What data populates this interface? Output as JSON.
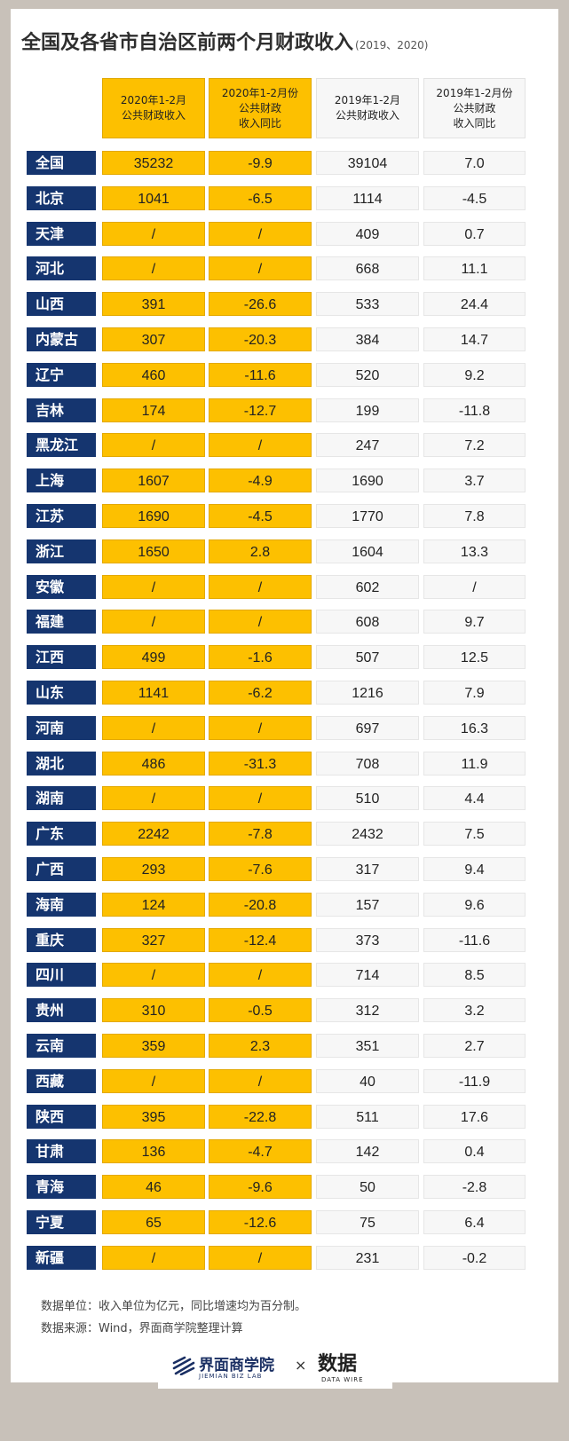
{
  "title": "全国及各省市自治区前两个月财政收入",
  "subtitle": "(2019、2020)",
  "chart_data": {
    "type": "table",
    "columns": [
      "2020年1-2月\n公共财政收入",
      "2020年1-2月份\n公共财政\n收入同比",
      "2019年1-2月\n公共财政收入",
      "2019年1-2月份\n公共财政\n收入同比"
    ],
    "rows": [
      {
        "region": "全国",
        "values": [
          "35232",
          "-9.9",
          "39104",
          "7.0"
        ]
      },
      {
        "region": "北京",
        "values": [
          "1041",
          "-6.5",
          "1114",
          "-4.5"
        ]
      },
      {
        "region": "天津",
        "values": [
          "/",
          "/",
          "409",
          "0.7"
        ]
      },
      {
        "region": "河北",
        "values": [
          "/",
          "/",
          "668",
          "11.1"
        ]
      },
      {
        "region": "山西",
        "values": [
          "391",
          "-26.6",
          "533",
          "24.4"
        ]
      },
      {
        "region": "内蒙古",
        "values": [
          "307",
          "-20.3",
          "384",
          "14.7"
        ]
      },
      {
        "region": "辽宁",
        "values": [
          "460",
          "-11.6",
          "520",
          "9.2"
        ]
      },
      {
        "region": "吉林",
        "values": [
          "174",
          "-12.7",
          "199",
          "-11.8"
        ]
      },
      {
        "region": "黑龙江",
        "values": [
          "/",
          "/",
          "247",
          "7.2"
        ]
      },
      {
        "region": "上海",
        "values": [
          "1607",
          "-4.9",
          "1690",
          "3.7"
        ]
      },
      {
        "region": "江苏",
        "values": [
          "1690",
          "-4.5",
          "1770",
          "7.8"
        ]
      },
      {
        "region": "浙江",
        "values": [
          "1650",
          "2.8",
          "1604",
          "13.3"
        ]
      },
      {
        "region": "安徽",
        "values": [
          "/",
          "/",
          "602",
          "/"
        ]
      },
      {
        "region": "福建",
        "values": [
          "/",
          "/",
          "608",
          "9.7"
        ]
      },
      {
        "region": "江西",
        "values": [
          "499",
          "-1.6",
          "507",
          "12.5"
        ]
      },
      {
        "region": "山东",
        "values": [
          "1141",
          "-6.2",
          "1216",
          "7.9"
        ]
      },
      {
        "region": "河南",
        "values": [
          "/",
          "/",
          "697",
          "16.3"
        ]
      },
      {
        "region": "湖北",
        "values": [
          "486",
          "-31.3",
          "708",
          "11.9"
        ]
      },
      {
        "region": "湖南",
        "values": [
          "/",
          "/",
          "510",
          "4.4"
        ]
      },
      {
        "region": "广东",
        "values": [
          "2242",
          "-7.8",
          "2432",
          "7.5"
        ]
      },
      {
        "region": "广西",
        "values": [
          "293",
          "-7.6",
          "317",
          "9.4"
        ]
      },
      {
        "region": "海南",
        "values": [
          "124",
          "-20.8",
          "157",
          "9.6"
        ]
      },
      {
        "region": "重庆",
        "values": [
          "327",
          "-12.4",
          "373",
          "-11.6"
        ]
      },
      {
        "region": "四川",
        "values": [
          "/",
          "/",
          "714",
          "8.5"
        ]
      },
      {
        "region": "贵州",
        "values": [
          "310",
          "-0.5",
          "312",
          "3.2"
        ]
      },
      {
        "region": "云南",
        "values": [
          "359",
          "2.3",
          "351",
          "2.7"
        ]
      },
      {
        "region": "西藏",
        "values": [
          "/",
          "/",
          "40",
          "-11.9"
        ]
      },
      {
        "region": "陕西",
        "values": [
          "395",
          "-22.8",
          "511",
          "17.6"
        ]
      },
      {
        "region": "甘肃",
        "values": [
          "136",
          "-4.7",
          "142",
          "0.4"
        ]
      },
      {
        "region": "青海",
        "values": [
          "46",
          "-9.6",
          "50",
          "-2.8"
        ]
      },
      {
        "region": "宁夏",
        "values": [
          "65",
          "-12.6",
          "75",
          "6.4"
        ]
      },
      {
        "region": "新疆",
        "values": [
          "/",
          "/",
          "231",
          "-0.2"
        ]
      }
    ]
  },
  "notes": {
    "unit": "数据单位：收入单位为亿元，同比增速均为百分制。",
    "source": "数据来源：Wind，界面商学院整理计算"
  },
  "footer": {
    "brand_cn": "界面商学院",
    "brand_en": "JIEMIAN BIZ LAB",
    "times": "×",
    "partner": "数据",
    "partner_en": "DATA WIRE"
  },
  "colors": {
    "highlight": "#fdc000",
    "region_bg": "#15356f",
    "plain_bg": "#f7f7f7",
    "frame": "#c8c1b9"
  }
}
